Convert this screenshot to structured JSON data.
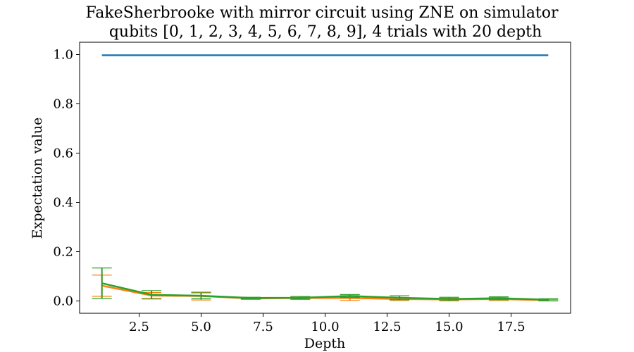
{
  "chart_data": {
    "type": "line",
    "title": [
      "FakeSherbrooke with mirror circuit using ZNE on simulator",
      "qubits [0, 1, 2, 3, 4, 5, 6, 7, 8, 9], 4 trials with 20 depth"
    ],
    "xlabel": "Depth",
    "ylabel": "Expectation value",
    "xlim": [
      0.1,
      19.9
    ],
    "ylim": [
      -0.05,
      1.05
    ],
    "xticks": [
      2.5,
      5.0,
      7.5,
      10.0,
      12.5,
      15.0,
      17.5
    ],
    "xtick_labels": [
      "2.5",
      "5.0",
      "7.5",
      "10.0",
      "12.5",
      "15.0",
      "17.5"
    ],
    "yticks": [
      0.0,
      0.2,
      0.4,
      0.6,
      0.8,
      1.0
    ],
    "ytick_labels": [
      "0.0",
      "0.2",
      "0.4",
      "0.6",
      "0.8",
      "1.0"
    ],
    "grid": false,
    "x": [
      1,
      3,
      5,
      7,
      9,
      11,
      13,
      15,
      17,
      19
    ],
    "series": [
      {
        "color": "#1f77b4",
        "values": [
          0.997,
          0.997,
          0.997,
          0.997,
          0.997,
          0.997,
          0.997,
          0.997,
          0.997,
          0.997
        ],
        "errors": null
      },
      {
        "color": "#ff7f0e",
        "values": [
          0.062,
          0.022,
          0.02,
          0.01,
          0.012,
          0.012,
          0.008,
          0.006,
          0.008,
          0.003
        ],
        "errors": [
          0.043,
          0.012,
          0.016,
          0.004,
          0.006,
          0.01,
          0.006,
          0.005,
          0.006,
          0.003
        ]
      },
      {
        "color": "#2ca02c",
        "values": [
          0.072,
          0.025,
          0.021,
          0.012,
          0.013,
          0.02,
          0.013,
          0.008,
          0.011,
          0.005
        ],
        "errors": [
          0.062,
          0.017,
          0.012,
          0.003,
          0.005,
          0.006,
          0.008,
          0.007,
          0.006,
          0.004
        ]
      }
    ]
  }
}
